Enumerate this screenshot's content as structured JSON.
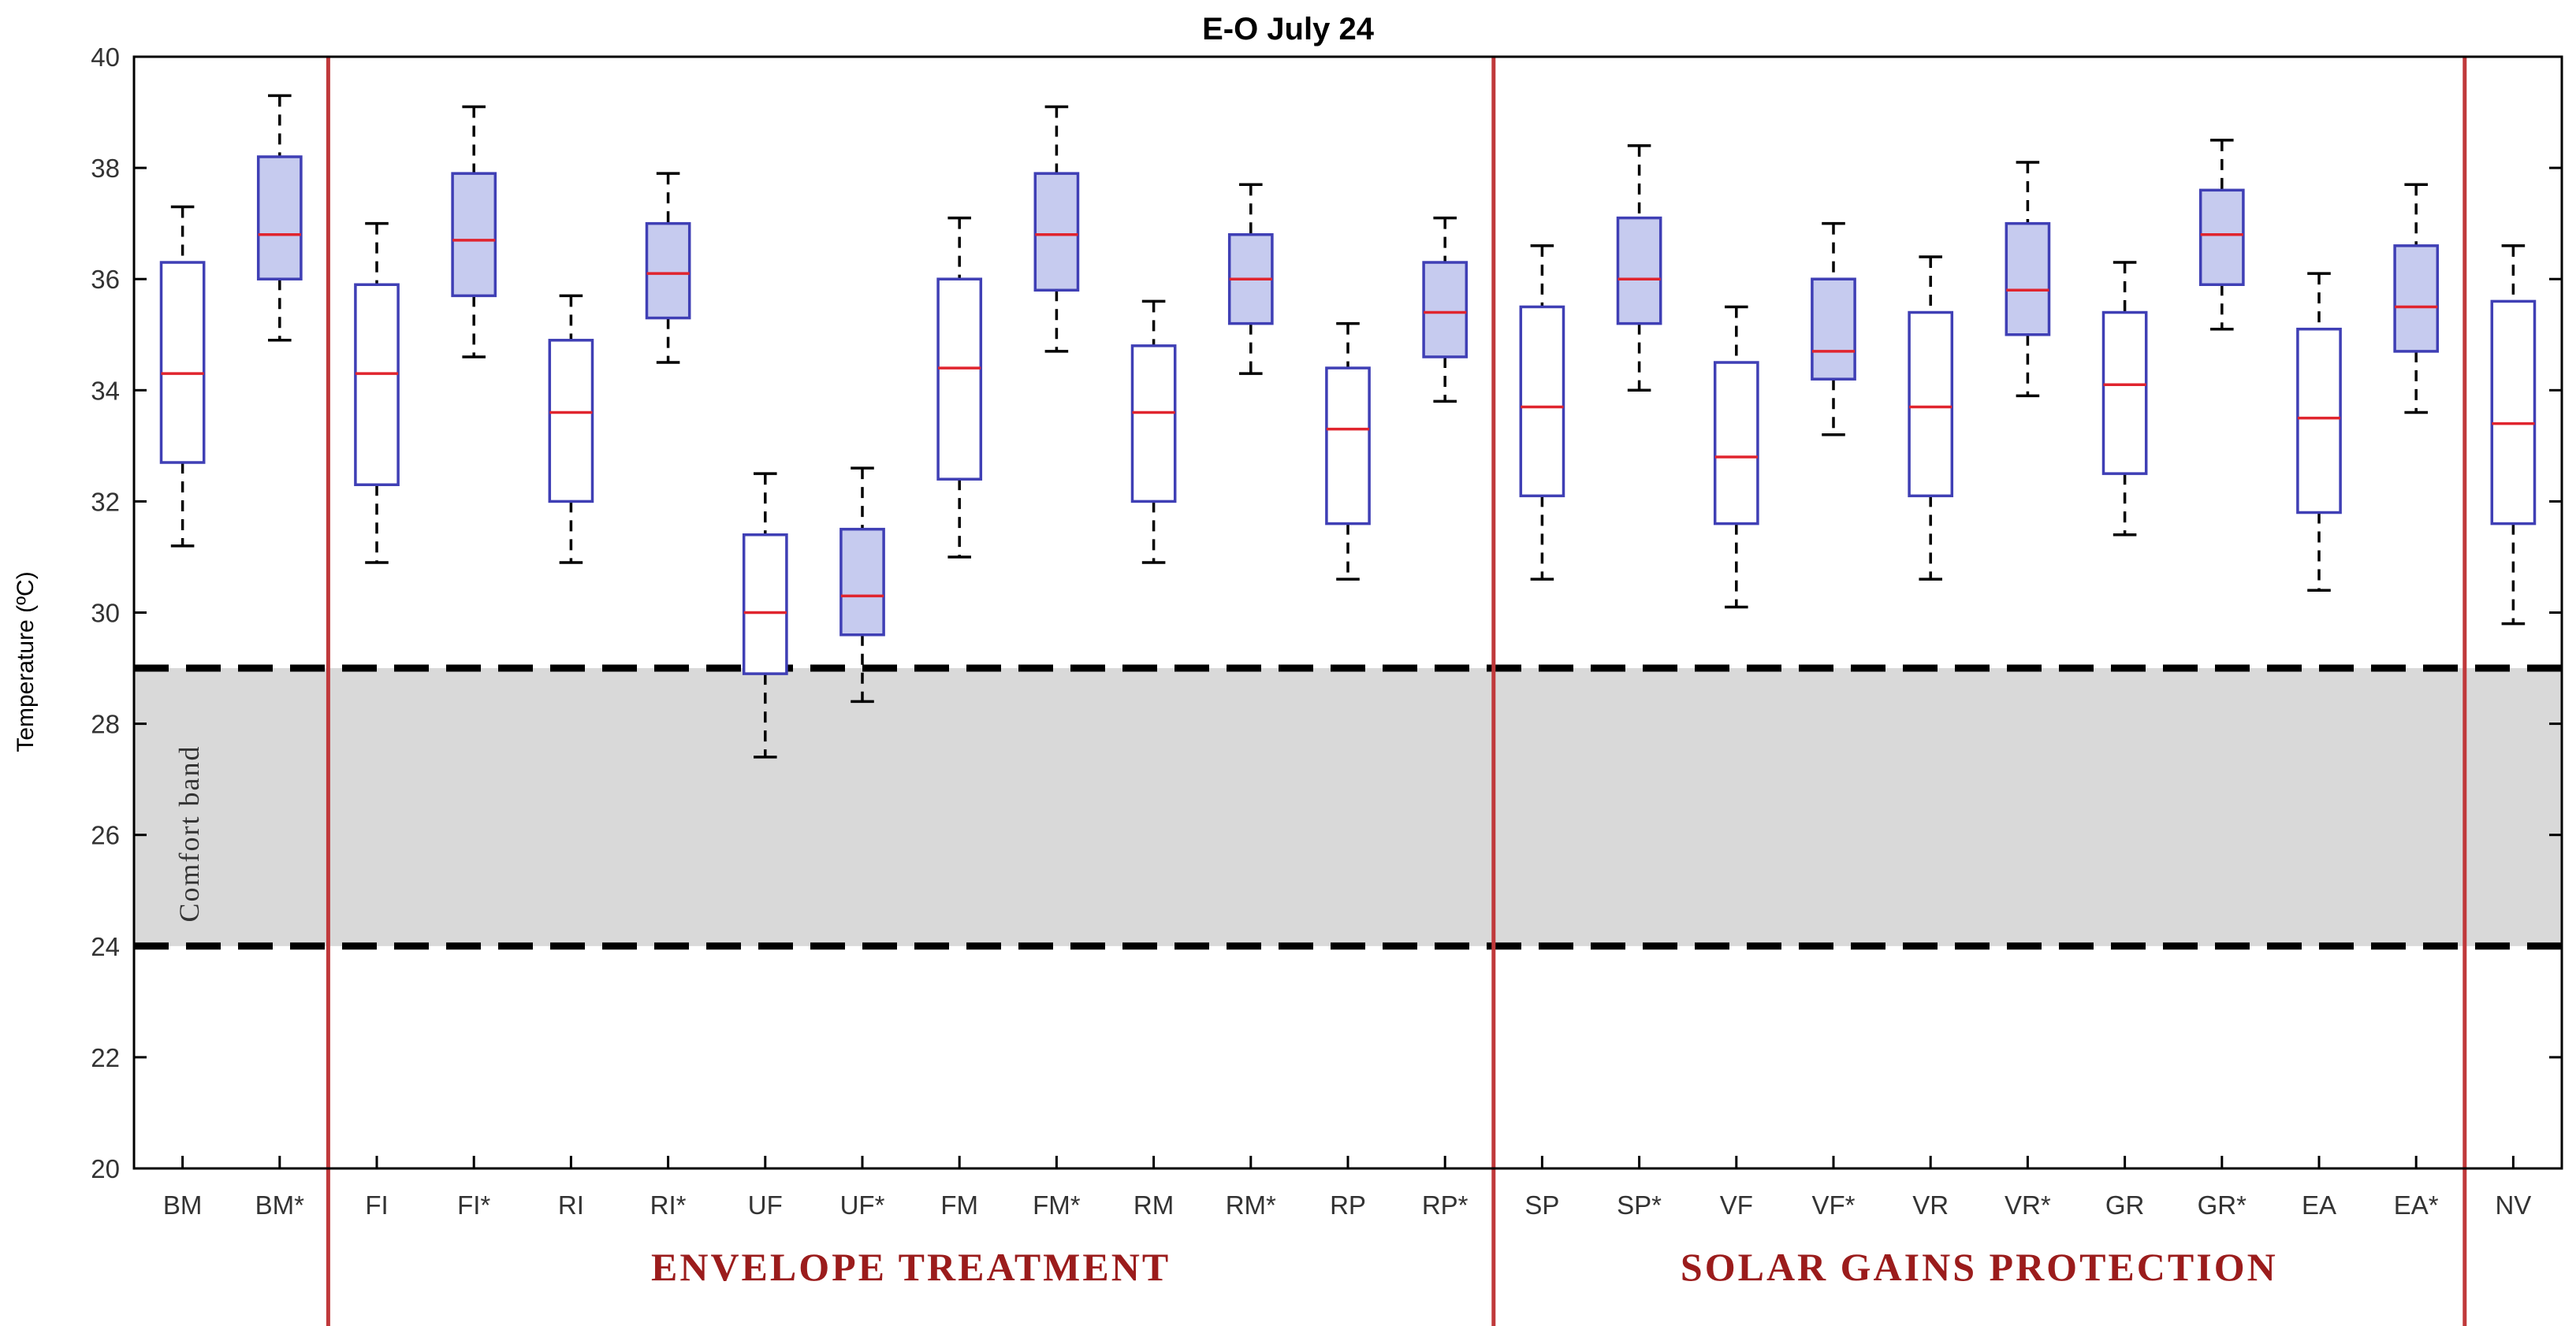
{
  "chart_data": {
    "type": "boxplot",
    "title": "E-O July 24",
    "xlabel": "",
    "ylabel": "Temperature (ºC)",
    "ylim": [
      20,
      40
    ],
    "yticks": [
      20,
      22,
      24,
      26,
      28,
      30,
      32,
      34,
      36,
      38,
      40
    ],
    "categories": [
      "BM",
      "BM*",
      "FI",
      "FI*",
      "RI",
      "RI*",
      "UF",
      "UF*",
      "FM",
      "FM*",
      "RM",
      "RM*",
      "RP",
      "RP*",
      "SP",
      "SP*",
      "VF",
      "VF*",
      "VR",
      "VR*",
      "GR",
      "GR*",
      "EA",
      "EA*",
      "NV"
    ],
    "boxes": [
      {
        "label": "BM",
        "whisker_low": 31.2,
        "q1": 32.7,
        "median": 34.3,
        "q3": 36.3,
        "whisker_high": 37.3,
        "filled": false
      },
      {
        "label": "BM*",
        "whisker_low": 34.9,
        "q1": 36.0,
        "median": 36.8,
        "q3": 38.2,
        "whisker_high": 39.3,
        "filled": true
      },
      {
        "label": "FI",
        "whisker_low": 30.9,
        "q1": 32.3,
        "median": 34.3,
        "q3": 35.9,
        "whisker_high": 37.0,
        "filled": false
      },
      {
        "label": "FI*",
        "whisker_low": 34.6,
        "q1": 35.7,
        "median": 36.7,
        "q3": 37.9,
        "whisker_high": 39.1,
        "filled": true
      },
      {
        "label": "RI",
        "whisker_low": 30.9,
        "q1": 32.0,
        "median": 33.6,
        "q3": 34.9,
        "whisker_high": 35.7,
        "filled": false
      },
      {
        "label": "RI*",
        "whisker_low": 34.5,
        "q1": 35.3,
        "median": 36.1,
        "q3": 37.0,
        "whisker_high": 37.9,
        "filled": true
      },
      {
        "label": "UF",
        "whisker_low": 27.4,
        "q1": 28.9,
        "median": 30.0,
        "q3": 31.4,
        "whisker_high": 32.5,
        "filled": false
      },
      {
        "label": "UF*",
        "whisker_low": 28.4,
        "q1": 29.6,
        "median": 30.3,
        "q3": 31.5,
        "whisker_high": 32.6,
        "filled": true
      },
      {
        "label": "FM",
        "whisker_low": 31.0,
        "q1": 32.4,
        "median": 34.4,
        "q3": 36.0,
        "whisker_high": 37.1,
        "filled": false
      },
      {
        "label": "FM*",
        "whisker_low": 34.7,
        "q1": 35.8,
        "median": 36.8,
        "q3": 37.9,
        "whisker_high": 39.1,
        "filled": true
      },
      {
        "label": "RM",
        "whisker_low": 30.9,
        "q1": 32.0,
        "median": 33.6,
        "q3": 34.8,
        "whisker_high": 35.6,
        "filled": false
      },
      {
        "label": "RM*",
        "whisker_low": 34.3,
        "q1": 35.2,
        "median": 36.0,
        "q3": 36.8,
        "whisker_high": 37.7,
        "filled": true
      },
      {
        "label": "RP",
        "whisker_low": 30.6,
        "q1": 31.6,
        "median": 33.3,
        "q3": 34.4,
        "whisker_high": 35.2,
        "filled": false
      },
      {
        "label": "RP*",
        "whisker_low": 33.8,
        "q1": 34.6,
        "median": 35.4,
        "q3": 36.3,
        "whisker_high": 37.1,
        "filled": true
      },
      {
        "label": "SP",
        "whisker_low": 30.6,
        "q1": 32.1,
        "median": 33.7,
        "q3": 35.5,
        "whisker_high": 36.6,
        "filled": false
      },
      {
        "label": "SP*",
        "whisker_low": 34.0,
        "q1": 35.2,
        "median": 36.0,
        "q3": 37.1,
        "whisker_high": 38.4,
        "filled": true
      },
      {
        "label": "VF",
        "whisker_low": 30.1,
        "q1": 31.6,
        "median": 32.8,
        "q3": 34.5,
        "whisker_high": 35.5,
        "filled": false
      },
      {
        "label": "VF*",
        "whisker_low": 33.2,
        "q1": 34.2,
        "median": 34.7,
        "q3": 36.0,
        "whisker_high": 37.0,
        "filled": true
      },
      {
        "label": "VR",
        "whisker_low": 30.6,
        "q1": 32.1,
        "median": 33.7,
        "q3": 35.4,
        "whisker_high": 36.4,
        "filled": false
      },
      {
        "label": "VR*",
        "whisker_low": 33.9,
        "q1": 35.0,
        "median": 35.8,
        "q3": 37.0,
        "whisker_high": 38.1,
        "filled": true
      },
      {
        "label": "GR",
        "whisker_low": 31.4,
        "q1": 32.5,
        "median": 34.1,
        "q3": 35.4,
        "whisker_high": 36.3,
        "filled": false
      },
      {
        "label": "GR*",
        "whisker_low": 35.1,
        "q1": 35.9,
        "median": 36.8,
        "q3": 37.6,
        "whisker_high": 38.5,
        "filled": true
      },
      {
        "label": "EA",
        "whisker_low": 30.4,
        "q1": 31.8,
        "median": 33.5,
        "q3": 35.1,
        "whisker_high": 36.1,
        "filled": false
      },
      {
        "label": "EA*",
        "whisker_low": 33.6,
        "q1": 34.7,
        "median": 35.5,
        "q3": 36.6,
        "whisker_high": 37.7,
        "filled": true
      },
      {
        "label": "NV",
        "whisker_low": 29.8,
        "q1": 31.6,
        "median": 33.4,
        "q3": 35.6,
        "whisker_high": 36.6,
        "filled": false
      }
    ],
    "comfort_band": {
      "low": 24,
      "high": 29,
      "label": "Comfort band"
    },
    "sections": [
      {
        "label": "ENVELOPE TREATMENT",
        "from_index": 2,
        "to_index": 13
      },
      {
        "label": "SOLAR GAINS PROTECTION",
        "from_index": 14,
        "to_index": 23
      }
    ],
    "grid": false,
    "colors": {
      "box_edge": "#3f3fb5",
      "box_fill": "#c6cbef",
      "median": "#e0242e",
      "whisker": "#000000",
      "band_fill": "#d9d9d9",
      "band_line": "#000000",
      "divider": "#c0393b",
      "section_text": "#9b1c1c",
      "axis": "#000000"
    }
  }
}
